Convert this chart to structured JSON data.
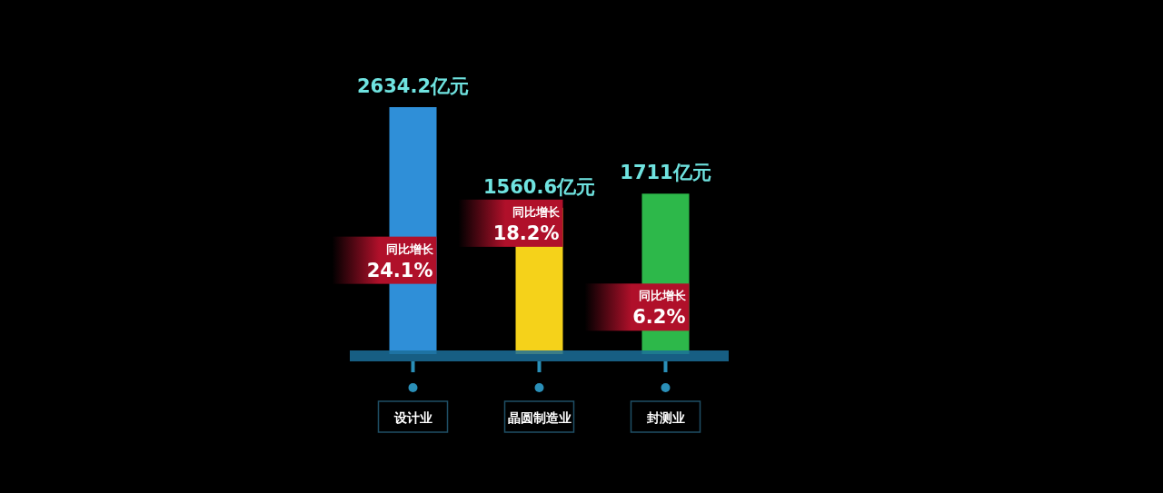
{
  "chart_data": {
    "type": "bar",
    "categories": [
      "设计业",
      "晶圆制造业",
      "封测业"
    ],
    "values": [
      2634.2,
      1560.6,
      1711
    ],
    "colors": [
      "#2f8fd8",
      "#f5d21a",
      "#2db84a"
    ],
    "value_labels": [
      "2634.2亿元",
      "1560.6亿元",
      "1711亿元"
    ],
    "annotations": [
      "同比增长\n24.1%",
      "同比增长\n18.2%",
      "同比增长\n6.2%"
    ]
  }
}
